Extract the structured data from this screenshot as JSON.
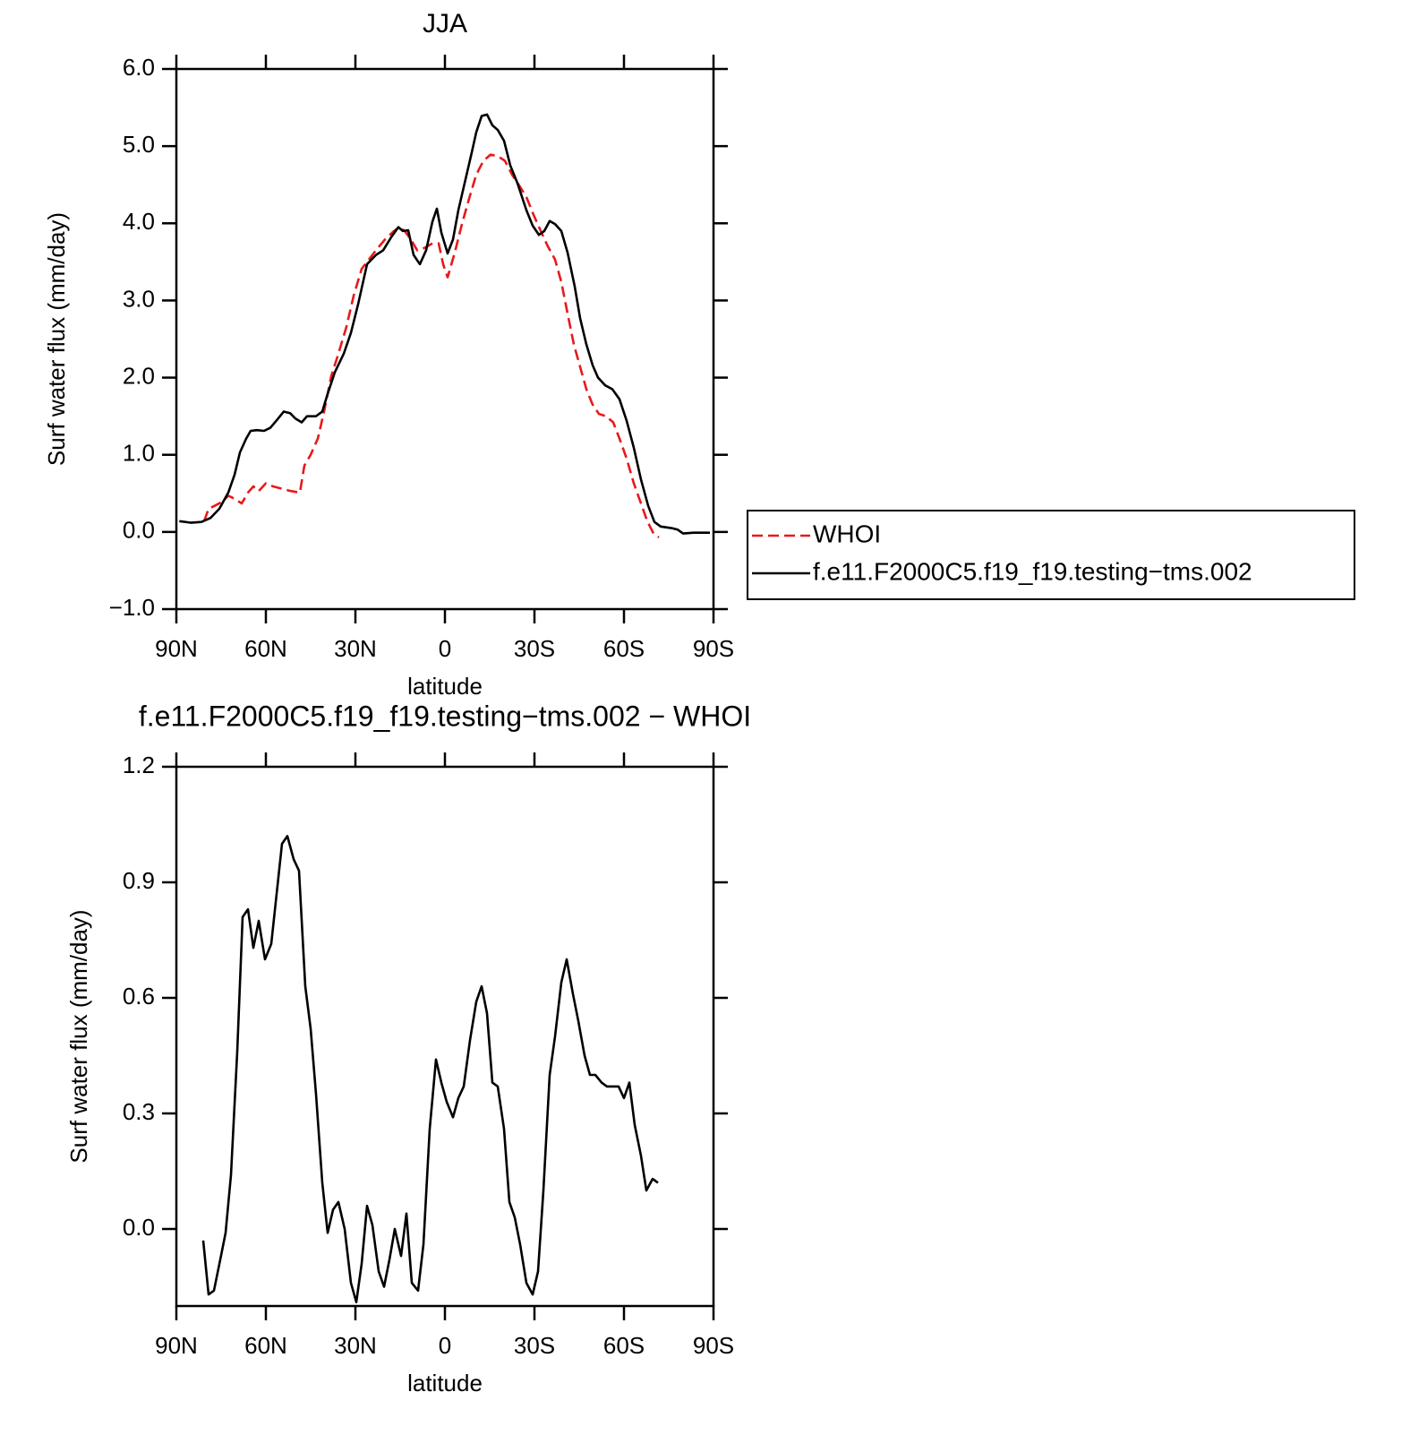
{
  "chart_data": [
    {
      "type": "line",
      "title": "JJA",
      "x_label": "latitude",
      "y_label": "Surf water flux (mm/day)",
      "xlim": [
        90,
        -90
      ],
      "xticks": [
        {
          "value": 90,
          "label": "90N"
        },
        {
          "value": 60,
          "label": "60N"
        },
        {
          "value": 30,
          "label": "30N"
        },
        0,
        {
          "value": -30,
          "label": "30S"
        },
        {
          "value": -60,
          "label": "60S"
        },
        {
          "value": -90,
          "label": "90S"
        }
      ],
      "ylim": [
        -1,
        6
      ],
      "yticks": [
        {
          "value": -1,
          "label": "−1.0"
        },
        {
          "value": 0,
          "label": "0.0"
        },
        {
          "value": 1,
          "label": "1.0"
        },
        {
          "value": 2,
          "label": "2.0"
        },
        {
          "value": 3,
          "label": "3.0"
        },
        {
          "value": 4,
          "label": "4.0"
        },
        {
          "value": 5,
          "label": "5.0"
        },
        {
          "value": 6,
          "label": "6.0"
        }
      ],
      "legend": "outside-right",
      "series": [
        {
          "name": "WHOI",
          "color": "#e8191b",
          "dash": "dashed",
          "x": [
            80.7,
            79.2,
            77.1,
            74.7,
            72.6,
            70.5,
            68.1,
            66,
            64.2,
            62.4,
            60,
            57.6,
            54.6,
            51.6,
            48.6,
            47.1,
            45,
            42.6,
            40.5,
            38.1,
            35.7,
            33,
            30.6,
            27.9,
            25.5,
            23.1,
            20.1,
            17.1,
            15.3,
            13.5,
            11.4,
            9.3,
            6.9,
            4.2,
            2.1,
            0.6,
            -0.9,
            -3.3,
            -5.7,
            -8.1,
            -10.5,
            -12.9,
            -15.3,
            -17.7,
            -20.1,
            -22.5,
            -24.9,
            -27.3,
            -29.7,
            -32.1,
            -34.5,
            -36.9,
            -39,
            -41.1,
            -43.2,
            -45.3,
            -47.4,
            -49.5,
            -51.6,
            -54,
            -56.4,
            -58.5,
            -60.9,
            -63.3,
            -65.7,
            -67.8,
            -69.9,
            -71.7
          ],
          "values": [
            0.14,
            0.3,
            0.34,
            0.39,
            0.47,
            0.43,
            0.37,
            0.51,
            0.59,
            0.53,
            0.63,
            0.59,
            0.56,
            0.53,
            0.51,
            0.86,
            1.0,
            1.21,
            1.56,
            2.02,
            2.31,
            2.66,
            3.06,
            3.41,
            3.53,
            3.65,
            3.79,
            3.9,
            3.95,
            3.9,
            3.79,
            3.65,
            3.68,
            3.74,
            3.74,
            3.47,
            3.3,
            3.62,
            3.99,
            4.32,
            4.63,
            4.81,
            4.89,
            4.87,
            4.81,
            4.63,
            4.49,
            4.34,
            4.11,
            3.9,
            3.7,
            3.53,
            3.24,
            2.83,
            2.43,
            2.14,
            1.85,
            1.65,
            1.53,
            1.5,
            1.42,
            1.21,
            0.95,
            0.63,
            0.37,
            0.14,
            -0.02,
            -0.07
          ]
        },
        {
          "name": "f.e11.F2000C5.f19_f19.testing−tms.002",
          "color": "#000000",
          "dash": "solid",
          "x": [
            89,
            85.2,
            81.6,
            78.6,
            75.6,
            72.6,
            70.5,
            68.7,
            66.6,
            65.1,
            63,
            60.6,
            58.5,
            56.1,
            54,
            51.9,
            50.1,
            48,
            46.2,
            43.2,
            41.1,
            39.3,
            36.9,
            33.9,
            31.5,
            29.1,
            26.1,
            23.1,
            20.7,
            18,
            15.6,
            14.1,
            12.3,
            10.5,
            8.4,
            6.3,
            4.2,
            2.7,
            1.2,
            -0.9,
            -2.7,
            -4.5,
            -6.9,
            -9,
            -10.5,
            -12.3,
            -14.1,
            -15.9,
            -17.7,
            -19.8,
            -21.9,
            -24.3,
            -27.3,
            -29.4,
            -31.5,
            -33.3,
            -35.1,
            -36.9,
            -39,
            -41.1,
            -43.5,
            -45.3,
            -47.4,
            -49.5,
            -51.3,
            -53.7,
            -56.1,
            -58.5,
            -60.9,
            -63.3,
            -65.7,
            -68.1,
            -70.2,
            -72.3,
            -75.9,
            -78,
            -79.8,
            -83.4,
            -86.4,
            -88.8
          ],
          "values": [
            0.14,
            0.12,
            0.13,
            0.18,
            0.3,
            0.51,
            0.74,
            1.03,
            1.21,
            1.31,
            1.32,
            1.31,
            1.35,
            1.46,
            1.56,
            1.54,
            1.47,
            1.42,
            1.5,
            1.5,
            1.56,
            1.79,
            2.07,
            2.31,
            2.58,
            2.95,
            3.47,
            3.59,
            3.65,
            3.82,
            3.95,
            3.9,
            3.91,
            3.59,
            3.47,
            3.65,
            4.02,
            4.19,
            3.88,
            3.61,
            3.79,
            4.17,
            4.57,
            4.92,
            5.18,
            5.39,
            5.41,
            5.27,
            5.21,
            5.07,
            4.75,
            4.52,
            4.17,
            3.97,
            3.85,
            3.9,
            4.03,
            3.99,
            3.9,
            3.62,
            3.18,
            2.77,
            2.43,
            2.16,
            2.0,
            1.9,
            1.85,
            1.72,
            1.44,
            1.09,
            0.68,
            0.34,
            0.13,
            0.07,
            0.05,
            0.03,
            -0.02,
            -0.01,
            -0.01,
            -0.01
          ]
        }
      ]
    },
    {
      "type": "line",
      "title": "f.e11.F2000C5.f19_f19.testing−tms.002 − WHOI",
      "x_label": "latitude",
      "y_label": "Surf water flux (mm/day)",
      "xlim": [
        90,
        -90
      ],
      "xticks": [
        {
          "value": 90,
          "label": "90N"
        },
        {
          "value": 60,
          "label": "60N"
        },
        {
          "value": 30,
          "label": "30N"
        },
        0,
        {
          "value": -30,
          "label": "30S"
        },
        {
          "value": -60,
          "label": "60S"
        },
        {
          "value": -90,
          "label": "90S"
        }
      ],
      "ylim": [
        -0.2,
        1.2
      ],
      "yticks": [
        {
          "value": 0,
          "label": "0.0"
        },
        {
          "value": 0.3,
          "label": "0.3"
        },
        {
          "value": 0.6,
          "label": "0.6"
        },
        {
          "value": 0.9,
          "label": "0.9"
        },
        {
          "value": 1.2,
          "label": "1.2"
        }
      ],
      "series": [
        {
          "color": "#000000",
          "dash": "solid",
          "x": [
            81,
            79.2,
            77.4,
            75.3,
            73.5,
            71.7,
            69.6,
            67.8,
            66,
            64.2,
            62.4,
            60.3,
            58.2,
            56.4,
            54.6,
            52.8,
            50.7,
            48.9,
            46.8,
            45,
            43.2,
            41.1,
            39.3,
            37.5,
            35.7,
            33.6,
            31.5,
            29.7,
            27.9,
            26.1,
            24.3,
            22.2,
            20.4,
            18.6,
            16.8,
            14.7,
            12.9,
            11.1,
            9,
            7.2,
            5.1,
            3,
            1.2,
            -0.6,
            -2.7,
            -4.5,
            -6.3,
            -8.4,
            -10.5,
            -12.3,
            -14.1,
            -15.9,
            -17.7,
            -19.8,
            -21.6,
            -23.4,
            -25.2,
            -27.3,
            -29.4,
            -31.2,
            -33,
            -35.1,
            -36.9,
            -39,
            -40.8,
            -42.9,
            -44.7,
            -46.8,
            -48.6,
            -50.4,
            -52.5,
            -54.3,
            -56.1,
            -58.2,
            -60,
            -61.8,
            -63.6,
            -65.7,
            -67.5,
            -69.6,
            -71.4
          ],
          "values": [
            -0.03,
            -0.17,
            -0.16,
            -0.08,
            -0.01,
            0.14,
            0.46,
            0.81,
            0.83,
            0.73,
            0.8,
            0.7,
            0.74,
            0.87,
            1.0,
            1.02,
            0.96,
            0.93,
            0.63,
            0.52,
            0.35,
            0.12,
            -0.01,
            0.05,
            0.07,
            0.0,
            -0.14,
            -0.19,
            -0.09,
            0.06,
            0.01,
            -0.11,
            -0.15,
            -0.08,
            0.0,
            -0.07,
            0.04,
            -0.14,
            -0.16,
            -0.04,
            0.26,
            0.44,
            0.38,
            0.33,
            0.29,
            0.34,
            0.37,
            0.49,
            0.59,
            0.63,
            0.56,
            0.38,
            0.37,
            0.26,
            0.07,
            0.03,
            -0.04,
            -0.14,
            -0.17,
            -0.11,
            0.1,
            0.4,
            0.5,
            0.64,
            0.7,
            0.61,
            0.54,
            0.45,
            0.4,
            0.4,
            0.38,
            0.37,
            0.37,
            0.37,
            0.34,
            0.38,
            0.27,
            0.19,
            0.1,
            0.13,
            0.12
          ]
        }
      ]
    }
  ]
}
